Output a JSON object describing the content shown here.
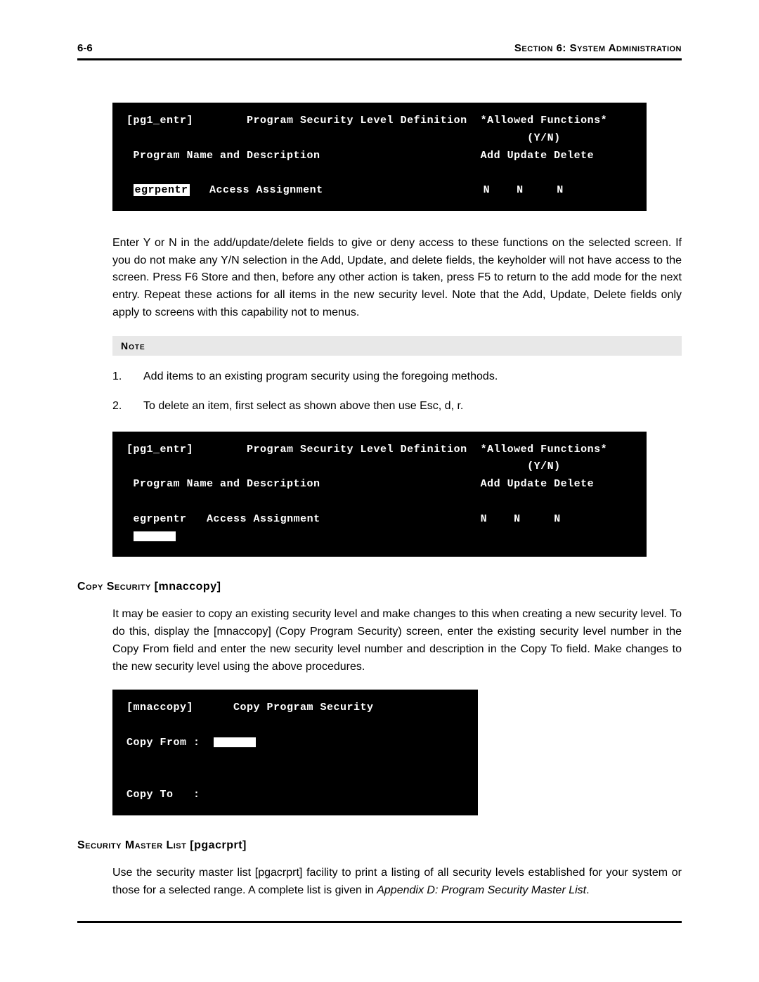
{
  "header": {
    "page_number": "6-6",
    "section_title": "Section 6: System Administration"
  },
  "terminal1": {
    "screen_id": "[pg1_entr]",
    "title": "Program Security Level Definition",
    "allowed": "*Allowed Functions*",
    "yn": "(Y/N)",
    "col_label": "Program Name and Description",
    "cols": "Add Update Delete",
    "program": "egrpentr",
    "desc": "Access Assignment",
    "add": "N",
    "update": "N",
    "delete": "N"
  },
  "paragraph1": "Enter Y or N in the add/update/delete fields to give or deny access to these functions on the selected screen. If you do not make any Y/N selection in the Add, Update, and delete fields, the keyholder will not have access to the screen. Press F6 Store and then, before any other action is taken, press F5 to return to the add mode for the next entry.  Repeat these actions for all items in the new security level. Note that the Add, Update, Delete fields only apply to screens with this capability not to menus.",
  "note_label": "Note",
  "list": {
    "item1_num": "1.",
    "item1_text": "Add items to an existing program security using the foregoing methods.",
    "item2_num": "2.",
    "item2_text": "To delete an item, first select as shown above then use Esc, d, r."
  },
  "terminal2": {
    "screen_id": "[pg1_entr]",
    "title": "Program Security Level Definition",
    "allowed": "*Allowed Functions*",
    "yn": "(Y/N)",
    "col_label": "Program Name and Description",
    "cols": "Add Update Delete",
    "program": "egrpentr",
    "desc": "Access Assignment",
    "add": "N",
    "update": "N",
    "delete": "N"
  },
  "heading_copy": {
    "caps": "Copy Security",
    "bracket": " [mnaccopy]"
  },
  "paragraph2": "It may be easier to copy an existing security level and make changes to this when creating a new security level.  To do this, display the [mnaccopy] (Copy Program Security) screen, enter the existing security level number in the Copy From field and enter the new security level number and description in the Copy To field.  Make changes to the new security level using the above procedures.",
  "terminal3": {
    "screen_id": "[mnaccopy]",
    "title": "Copy Program Security",
    "from_label": "Copy From :",
    "to_label": "Copy To   :"
  },
  "heading_master": {
    "caps": "Security Master List",
    "bracket": " [pgacrprt]"
  },
  "paragraph3_a": "Use the security master list [pgacrprt] facility to print a listing of all security levels established for your system or those for a selected range.  A complete list is given in  ",
  "paragraph3_b": "Appendix D: Program Security Master List",
  "paragraph3_c": "."
}
